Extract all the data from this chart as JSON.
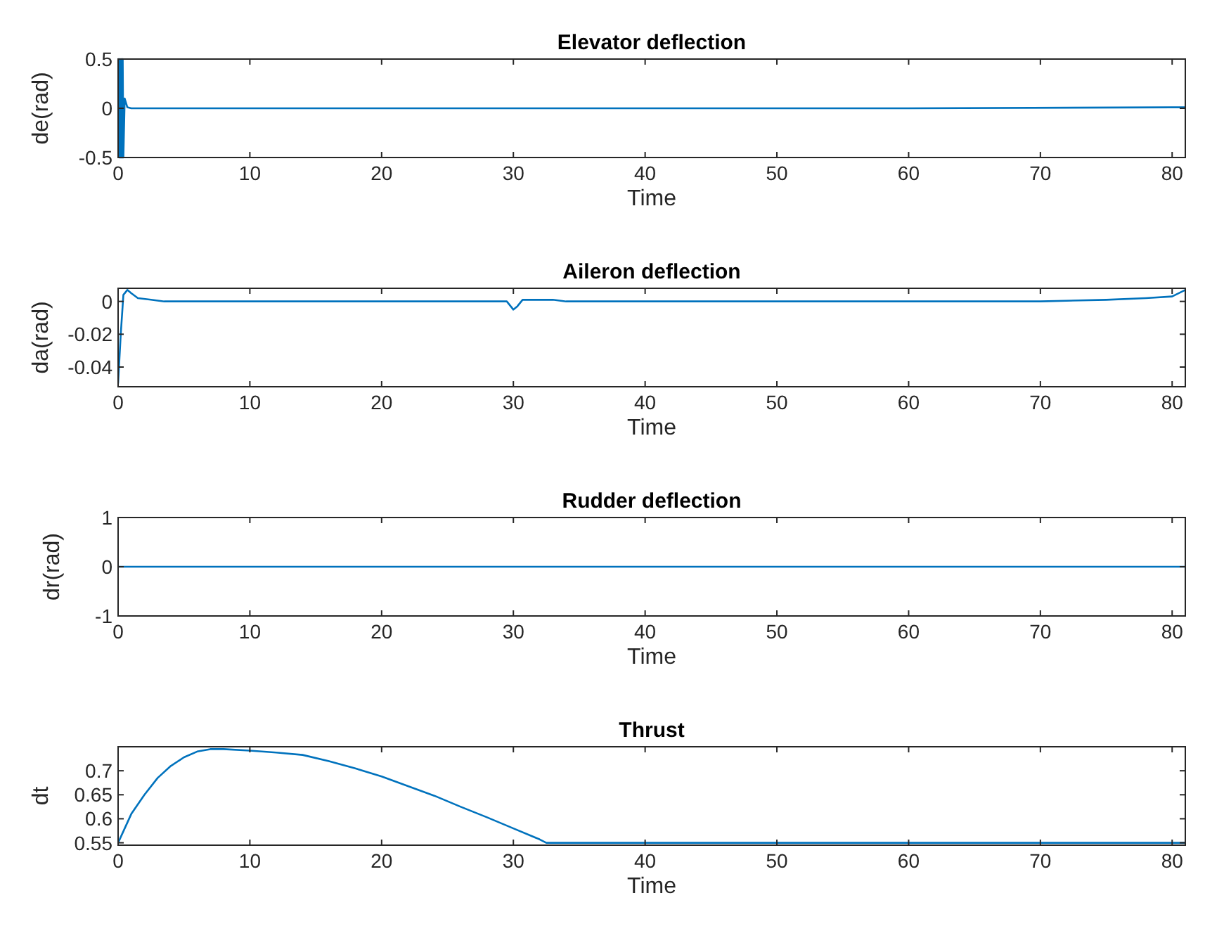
{
  "chart_data": [
    {
      "type": "line",
      "title": "Elevator deflection",
      "xlabel": "Time",
      "ylabel": "de(rad)",
      "xlim": [
        0,
        81
      ],
      "xticks": [
        0,
        10,
        20,
        30,
        40,
        50,
        60,
        70,
        80
      ],
      "ylim": [
        -0.5,
        0.5
      ],
      "yticks": [
        -0.5,
        0,
        0.5
      ],
      "series": [
        {
          "color": "#0072bd",
          "x": [
            0,
            0.05,
            0.1,
            0.15,
            0.2,
            0.25,
            0.3,
            0.35,
            0.4,
            0.5,
            0.7,
            1,
            20,
            40,
            60,
            80,
            81
          ],
          "values": [
            0,
            0.5,
            -0.5,
            0.5,
            -0.5,
            0.5,
            -0.5,
            0.5,
            -0.5,
            0.1,
            0.01,
            0,
            0,
            0,
            0,
            0.01,
            0.01
          ]
        }
      ]
    },
    {
      "type": "line",
      "title": "Aileron deflection",
      "xlabel": "Time",
      "ylabel": "da(rad)",
      "xlim": [
        0,
        81
      ],
      "xticks": [
        0,
        10,
        20,
        30,
        40,
        50,
        60,
        70,
        80
      ],
      "ylim": [
        -0.052,
        0.008
      ],
      "yticks": [
        -0.04,
        -0.02,
        0
      ],
      "series": [
        {
          "color": "#0072bd",
          "x": [
            0,
            0.2,
            0.4,
            0.7,
            1,
            1.5,
            2.5,
            3.5,
            10,
            29.5,
            29.8,
            30,
            30.3,
            30.7,
            31.5,
            33,
            34,
            50,
            70,
            75,
            78,
            80,
            81
          ],
          "values": [
            -0.05,
            -0.02,
            0.004,
            0.007,
            0.005,
            0.002,
            0.001,
            0,
            0,
            0,
            -0.003,
            -0.005,
            -0.003,
            0.001,
            0.001,
            0.001,
            0,
            0,
            0,
            0.001,
            0.002,
            0.003,
            0.007
          ]
        }
      ]
    },
    {
      "type": "line",
      "title": "Rudder deflection",
      "xlabel": "Time",
      "ylabel": "dr(rad)",
      "xlim": [
        0,
        81
      ],
      "xticks": [
        0,
        10,
        20,
        30,
        40,
        50,
        60,
        70,
        80
      ],
      "ylim": [
        -1,
        1
      ],
      "yticks": [
        -1,
        0,
        1
      ],
      "series": [
        {
          "color": "#0072bd",
          "x": [
            0,
            81
          ],
          "values": [
            0,
            0
          ]
        }
      ]
    },
    {
      "type": "line",
      "title": "Thrust",
      "xlabel": "Time",
      "ylabel": "dt",
      "xlim": [
        0,
        81
      ],
      "xticks": [
        0,
        10,
        20,
        30,
        40,
        50,
        60,
        70,
        80
      ],
      "ylim": [
        0.545,
        0.75
      ],
      "yticks": [
        0.55,
        0.6,
        0.65,
        0.7
      ],
      "series": [
        {
          "color": "#0072bd",
          "x": [
            0,
            0.5,
            1,
            2,
            3,
            4,
            5,
            6,
            7,
            8,
            10,
            12,
            14,
            16,
            18,
            20,
            22,
            24,
            26,
            28,
            30,
            32,
            32.5,
            40,
            60,
            81
          ],
          "values": [
            0.55,
            0.58,
            0.61,
            0.65,
            0.685,
            0.71,
            0.728,
            0.74,
            0.745,
            0.745,
            0.742,
            0.738,
            0.733,
            0.72,
            0.705,
            0.688,
            0.668,
            0.648,
            0.625,
            0.603,
            0.58,
            0.557,
            0.55,
            0.55,
            0.55,
            0.55
          ]
        }
      ]
    }
  ]
}
